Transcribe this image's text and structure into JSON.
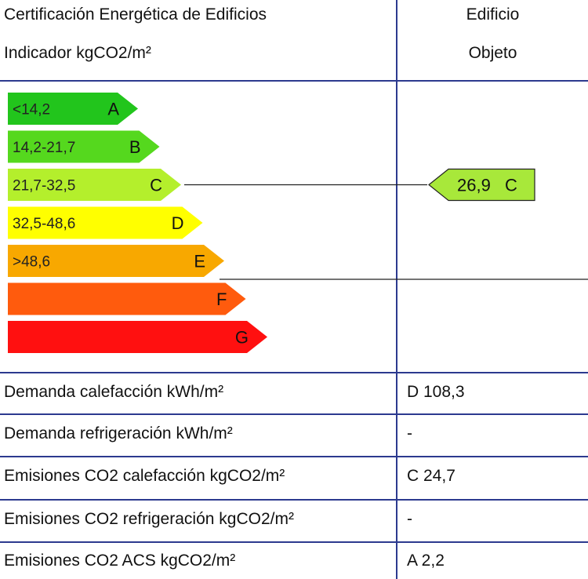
{
  "header": {
    "title": "Certificación Energética de Edificios",
    "indicator": "Indicador kgCO2/m²",
    "building": "Edificio",
    "object": "Objeto"
  },
  "chart_data": {
    "type": "bar",
    "categories": [
      "A",
      "B",
      "C",
      "D",
      "E",
      "F",
      "G"
    ],
    "ranges": [
      "<14,2",
      "14,2-21,7",
      "21,7-32,5",
      "32,5-48,6",
      ">48,6",
      "",
      ""
    ],
    "colors": [
      "#22c51c",
      "#55d81e",
      "#b4ef2c",
      "#ffff00",
      "#f8a800",
      "#ff5b0d",
      "#ff1010"
    ],
    "rating": {
      "value": "26,9",
      "letter": "C",
      "color": "#a8e83a"
    }
  },
  "rows": [
    {
      "label": "Demanda calefacción kWh/m²",
      "value": "D 108,3"
    },
    {
      "label": "Demanda refrigeración kWh/m²",
      "value": "-"
    },
    {
      "label": "Emisiones CO2 calefacción kgCO2/m²",
      "value": "C 24,7"
    },
    {
      "label": "Emisiones CO2 refrigeración kgCO2/m²",
      "value": "-"
    },
    {
      "label": "Emisiones CO2 ACS kgCO2/m²",
      "value": "A 2,2"
    }
  ]
}
